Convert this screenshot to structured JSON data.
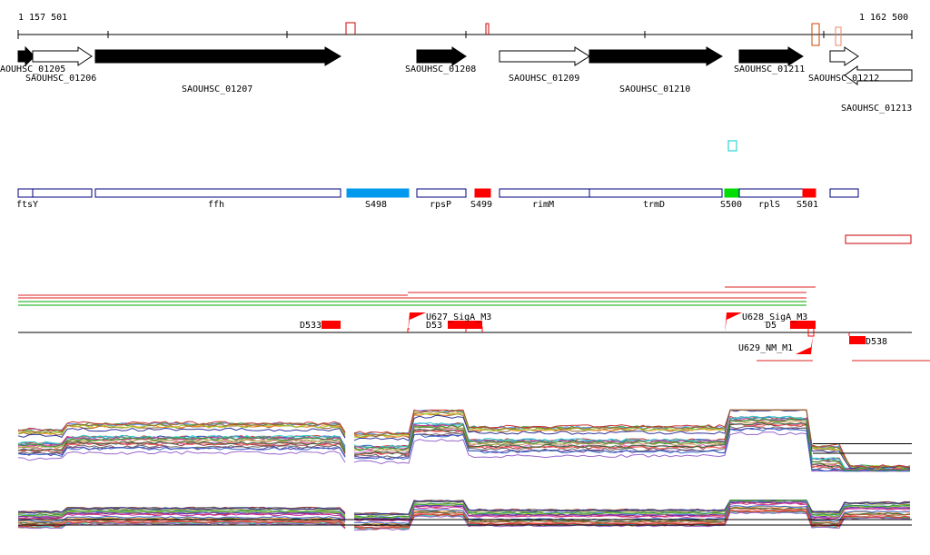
{
  "coordinates": {
    "start": "1 157 501",
    "end": "1 162 500"
  },
  "genes": [
    {
      "label": "AOUHSC_01205",
      "strand": "+",
      "fill": "#000000"
    },
    {
      "label": "SAOUHSC_01206",
      "strand": "+",
      "fill": "#ffffff"
    },
    {
      "label": "SAOUHSC_01207",
      "strand": "+",
      "fill": "#000000"
    },
    {
      "label": "SAOUHSC_01208",
      "strand": "+",
      "fill": "#000000"
    },
    {
      "label": "SAOUHSC_01209",
      "strand": "+",
      "fill": "#ffffff"
    },
    {
      "label": "SAOUHSC_01210",
      "strand": "+",
      "fill": "#000000"
    },
    {
      "label": "SAOUHSC_01211",
      "strand": "+",
      "fill": "#000000"
    },
    {
      "label": "SAOUHSC_01212",
      "strand": "+",
      "fill": "#ffffff"
    },
    {
      "label": "SAOUHSC_01213",
      "strand": "-",
      "fill": "#ffffff"
    }
  ],
  "annotations": [
    {
      "label": "ftsY",
      "fill": "#ffffff",
      "stroke": "#000080"
    },
    {
      "label": "ffh",
      "fill": "#ffffff",
      "stroke": "#000080"
    },
    {
      "label": "S498",
      "fill": "#0099ee",
      "stroke": "#0099ee"
    },
    {
      "label": "rpsP",
      "fill": "#ffffff",
      "stroke": "#000080"
    },
    {
      "label": "S499",
      "fill": "#ff0000",
      "stroke": "#ff0000"
    },
    {
      "label": "rimM",
      "fill": "#ffffff",
      "stroke": "#000080"
    },
    {
      "label": "trmD",
      "fill": "#ffffff",
      "stroke": "#000080"
    },
    {
      "label": "S500",
      "fill": "#00dd00",
      "stroke": "#00dd00"
    },
    {
      "label": "rplS",
      "fill": "#ffffff",
      "stroke": "#000080"
    },
    {
      "label": "S501",
      "fill": "#ff0000",
      "stroke": "#ff0000"
    }
  ],
  "features": [
    {
      "label": "D533"
    },
    {
      "label": "U627_SigA_M3"
    },
    {
      "label": "D53"
    },
    {
      "label": "U628_SigA_M3"
    },
    {
      "label": "D5"
    },
    {
      "label": "U629_NM_M1"
    },
    {
      "label": "D538"
    }
  ],
  "colors": {
    "gene_arrow": "#000000",
    "annotation_border": "#000080",
    "feature": "#ff0000",
    "tss_marker": "#ff0000",
    "green_track": "#00aa00",
    "cyan_marker": "#00cccc"
  }
}
